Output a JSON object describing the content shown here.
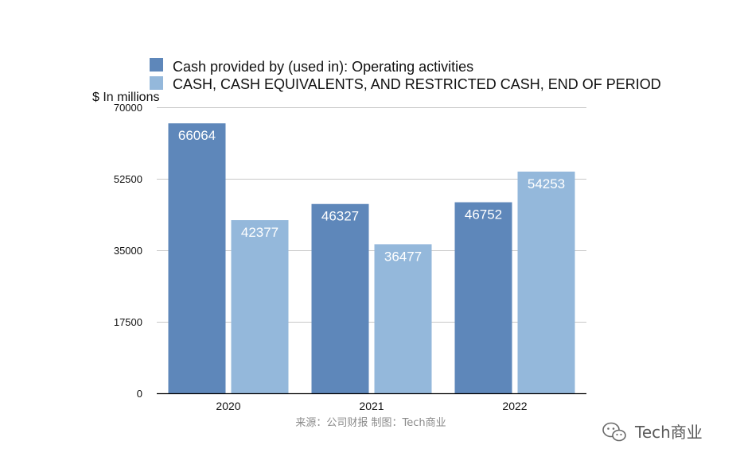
{
  "chart_data": {
    "type": "bar",
    "title": "",
    "xlabel": "",
    "ylabel": "$ In millions",
    "categories": [
      "2020",
      "2021",
      "2022"
    ],
    "series": [
      {
        "name": "Cash provided by (used in): Operating activities",
        "values": [
          66064,
          46327,
          46752
        ],
        "labels": [
          "66064",
          "46327",
          "46752"
        ],
        "color": "#5e87ba"
      },
      {
        "name": "CASH, CASH EQUIVALENTS, AND RESTRICTED CASH, END OF PERIOD",
        "values": [
          42377,
          36477,
          54253
        ],
        "labels": [
          "42377",
          "36477",
          "54253"
        ],
        "color": "#94b8db"
      }
    ],
    "ylim": [
      0,
      70000
    ],
    "yticks": [
      0,
      17500,
      35000,
      52500,
      70000
    ],
    "ytick_labels": [
      "0",
      "17500",
      "35000",
      "52500",
      "70000"
    ],
    "grid": true,
    "legend_position": "top"
  },
  "source_note": "来源：公司财报 制图：Tech商业",
  "watermark": {
    "text": "Tech商业",
    "icon": "wechat-icon"
  },
  "colors": {
    "gridline": "#c8c8c8",
    "axis": "#000000",
    "value_label": "#ffffff"
  }
}
